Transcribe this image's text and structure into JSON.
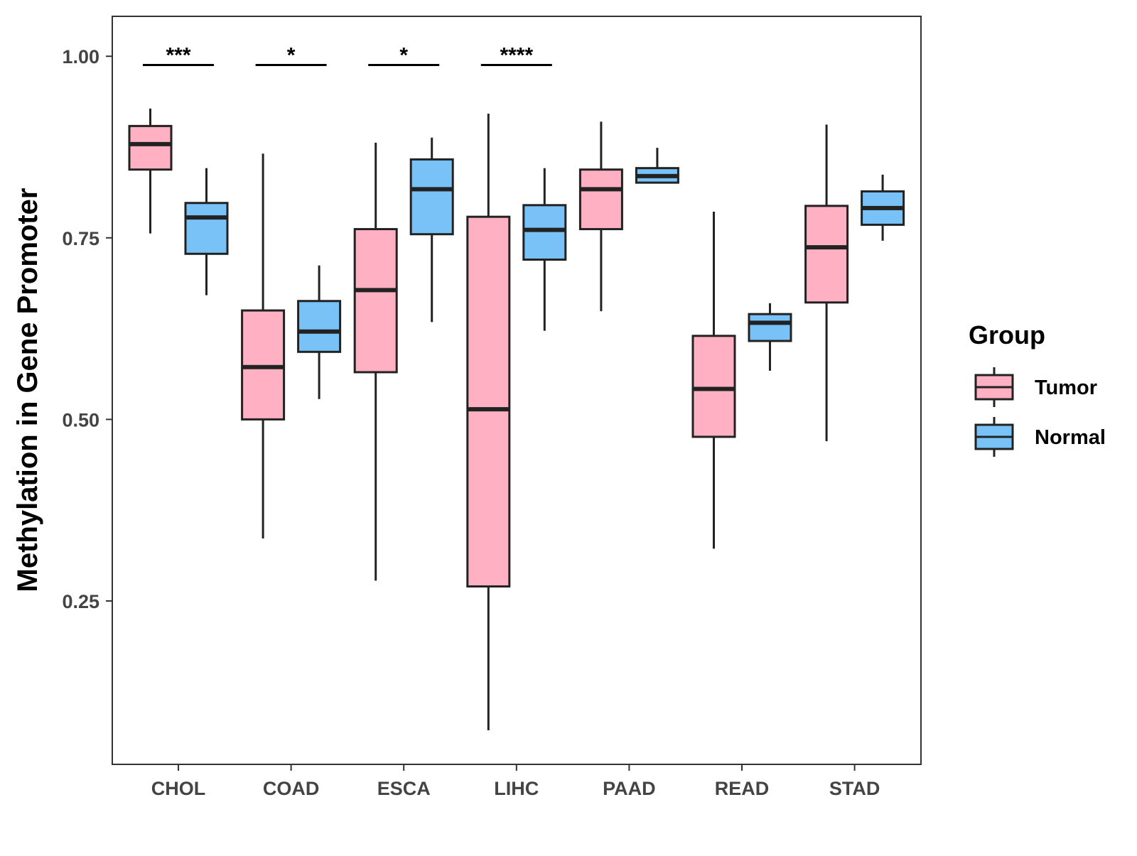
{
  "chart_data": {
    "type": "boxplot",
    "title": "",
    "xlabel": "",
    "ylabel": "Methylation in Gene Promoter",
    "ylim": [
      0.025,
      1.055
    ],
    "yticks": [
      0.25,
      0.5,
      0.75,
      1.0
    ],
    "ytick_labels": [
      "0.25",
      "0.50",
      "0.75",
      "1.00"
    ],
    "categories": [
      "CHOL",
      "COAD",
      "ESCA",
      "LIHC",
      "PAAD",
      "READ",
      "STAD"
    ],
    "grid": false,
    "legend": {
      "title": "Group",
      "position": "right",
      "entries": [
        {
          "name": "Tumor",
          "color": "#FFB0C3"
        },
        {
          "name": "Normal",
          "color": "#78C2F8"
        }
      ]
    },
    "series": [
      {
        "name": "Tumor",
        "color": "#FFB0C3",
        "boxes": [
          {
            "whisker_low": 0.756,
            "q1": 0.844,
            "median": 0.879,
            "q3": 0.904,
            "whisker_high": 0.928
          },
          {
            "whisker_low": 0.336,
            "q1": 0.5,
            "median": 0.572,
            "q3": 0.65,
            "whisker_high": 0.866
          },
          {
            "whisker_low": 0.278,
            "q1": 0.565,
            "median": 0.678,
            "q3": 0.762,
            "whisker_high": 0.881
          },
          {
            "whisker_low": 0.072,
            "q1": 0.27,
            "median": 0.514,
            "q3": 0.779,
            "whisker_high": 0.921
          },
          {
            "whisker_low": 0.649,
            "q1": 0.762,
            "median": 0.817,
            "q3": 0.844,
            "whisker_high": 0.91
          },
          {
            "whisker_low": 0.322,
            "q1": 0.476,
            "median": 0.542,
            "q3": 0.615,
            "whisker_high": 0.786
          },
          {
            "whisker_low": 0.47,
            "q1": 0.661,
            "median": 0.737,
            "q3": 0.794,
            "whisker_high": 0.906
          }
        ]
      },
      {
        "name": "Normal",
        "color": "#78C2F8",
        "boxes": [
          {
            "whisker_low": 0.671,
            "q1": 0.728,
            "median": 0.778,
            "q3": 0.798,
            "whisker_high": 0.846
          },
          {
            "whisker_low": 0.528,
            "q1": 0.593,
            "median": 0.621,
            "q3": 0.663,
            "whisker_high": 0.712
          },
          {
            "whisker_low": 0.634,
            "q1": 0.755,
            "median": 0.817,
            "q3": 0.858,
            "whisker_high": 0.888
          },
          {
            "whisker_low": 0.622,
            "q1": 0.72,
            "median": 0.761,
            "q3": 0.795,
            "whisker_high": 0.846
          },
          {
            "whisker_low": 0.825,
            "q1": 0.826,
            "median": 0.835,
            "q3": 0.846,
            "whisker_high": 0.874
          },
          {
            "whisker_low": 0.567,
            "q1": 0.608,
            "median": 0.633,
            "q3": 0.645,
            "whisker_high": 0.66
          },
          {
            "whisker_low": 0.746,
            "q1": 0.768,
            "median": 0.791,
            "q3": 0.814,
            "whisker_high": 0.837
          }
        ]
      }
    ],
    "annotations": [
      {
        "category": "CHOL",
        "label": "***",
        "y": 0.988
      },
      {
        "category": "COAD",
        "label": "*",
        "y": 0.988
      },
      {
        "category": "ESCA",
        "label": "*",
        "y": 0.988
      },
      {
        "category": "LIHC",
        "label": "****",
        "y": 0.988
      }
    ]
  }
}
